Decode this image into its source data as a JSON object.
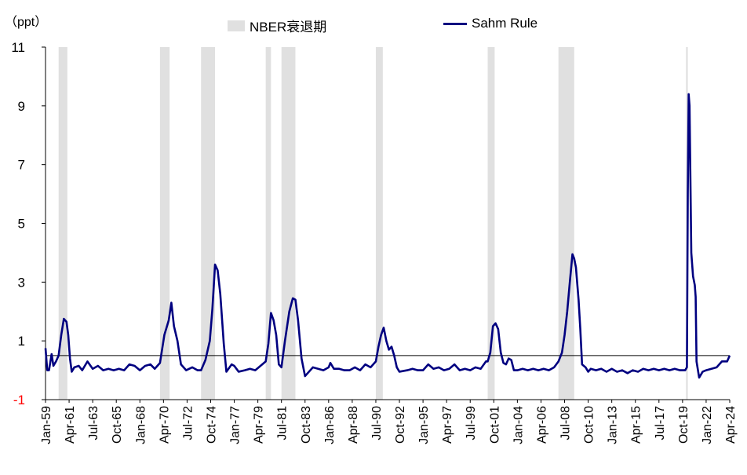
{
  "chart_data": {
    "type": "line",
    "unit_label": "（ppt）",
    "x_start": "Jan-59",
    "x_end": "Apr-24",
    "ylim": [
      -1,
      11
    ],
    "y_ticks": [
      -1,
      1,
      3,
      5,
      7,
      9,
      11
    ],
    "x_tick_labels": [
      "Jan-59",
      "Apr-61",
      "Jul-63",
      "Oct-65",
      "Jan-68",
      "Apr-70",
      "Jul-72",
      "Oct-74",
      "Jan-77",
      "Apr-79",
      "Jul-81",
      "Oct-83",
      "Jan-86",
      "Apr-88",
      "Jul-90",
      "Oct-92",
      "Jan-95",
      "Apr-97",
      "Jul-99",
      "Oct-01",
      "Jan-04",
      "Apr-06",
      "Jul-08",
      "Oct-10",
      "Jan-13",
      "Apr-15",
      "Jul-17",
      "Oct-19",
      "Jan-22",
      "Apr-24"
    ],
    "reference_line": 0.5,
    "recession_label": "NBER衰退期",
    "recession_periods": [
      [
        "Apr-60",
        "Feb-61"
      ],
      [
        "Dec-69",
        "Nov-70"
      ],
      [
        "Nov-73",
        "Mar-75"
      ],
      [
        "Jan-80",
        "Jul-80"
      ],
      [
        "Jul-81",
        "Nov-82"
      ],
      [
        "Jul-90",
        "Mar-91"
      ],
      [
        "Mar-01",
        "Nov-01"
      ],
      [
        "Dec-07",
        "Jun-09"
      ],
      [
        "Feb-20",
        "Apr-20"
      ]
    ],
    "series": [
      {
        "name": "Sahm Rule",
        "color": "#000080",
        "points": [
          [
            "Jan-59",
            0.75
          ],
          [
            "Mar-59",
            0.0
          ],
          [
            "May-59",
            0.0
          ],
          [
            "Aug-59",
            0.55
          ],
          [
            "Oct-59",
            0.15
          ],
          [
            "Jan-60",
            0.3
          ],
          [
            "Apr-60",
            0.5
          ],
          [
            "Jul-60",
            1.2
          ],
          [
            "Oct-60",
            1.75
          ],
          [
            "Jan-61",
            1.65
          ],
          [
            "Mar-61",
            1.2
          ],
          [
            "May-61",
            0.4
          ],
          [
            "Jul-61",
            -0.05
          ],
          [
            "Oct-61",
            0.1
          ],
          [
            "Mar-62",
            0.15
          ],
          [
            "Jul-62",
            0.0
          ],
          [
            "Jan-63",
            0.3
          ],
          [
            "Jul-63",
            0.05
          ],
          [
            "Jan-64",
            0.15
          ],
          [
            "Jul-64",
            0.0
          ],
          [
            "Jan-65",
            0.05
          ],
          [
            "Jul-65",
            0.0
          ],
          [
            "Jan-66",
            0.05
          ],
          [
            "Jul-66",
            0.0
          ],
          [
            "Jan-67",
            0.2
          ],
          [
            "Jul-67",
            0.15
          ],
          [
            "Jan-68",
            0.0
          ],
          [
            "Jul-68",
            0.15
          ],
          [
            "Jan-69",
            0.2
          ],
          [
            "Jun-69",
            0.05
          ],
          [
            "Dec-69",
            0.25
          ],
          [
            "May-70",
            1.2
          ],
          [
            "Oct-70",
            1.7
          ],
          [
            "Jan-71",
            2.3
          ],
          [
            "Apr-71",
            1.5
          ],
          [
            "Aug-71",
            1.0
          ],
          [
            "Dec-71",
            0.2
          ],
          [
            "Jun-72",
            0.0
          ],
          [
            "Jan-73",
            0.1
          ],
          [
            "Jul-73",
            0.0
          ],
          [
            "Nov-73",
            0.0
          ],
          [
            "Apr-74",
            0.35
          ],
          [
            "Sep-74",
            1.0
          ],
          [
            "Dec-74",
            2.1
          ],
          [
            "Mar-75",
            3.6
          ],
          [
            "Jun-75",
            3.4
          ],
          [
            "Sep-75",
            2.6
          ],
          [
            "Jan-76",
            0.9
          ],
          [
            "Apr-76",
            -0.05
          ],
          [
            "Oct-76",
            0.2
          ],
          [
            "Jan-77",
            0.15
          ],
          [
            "Jun-77",
            -0.05
          ],
          [
            "Jan-78",
            0.0
          ],
          [
            "Jul-78",
            0.05
          ],
          [
            "Jan-79",
            0.0
          ],
          [
            "Jul-79",
            0.15
          ],
          [
            "Jan-80",
            0.3
          ],
          [
            "Apr-80",
            0.9
          ],
          [
            "Jul-80",
            1.95
          ],
          [
            "Oct-80",
            1.7
          ],
          [
            "Jan-81",
            1.2
          ],
          [
            "Apr-81",
            0.2
          ],
          [
            "Jul-81",
            0.1
          ],
          [
            "Nov-81",
            1.0
          ],
          [
            "Apr-82",
            2.0
          ],
          [
            "Aug-82",
            2.45
          ],
          [
            "Nov-82",
            2.4
          ],
          [
            "Feb-83",
            1.7
          ],
          [
            "Jun-83",
            0.4
          ],
          [
            "Oct-83",
            -0.2
          ],
          [
            "Jan-84",
            -0.1
          ],
          [
            "Jul-84",
            0.1
          ],
          [
            "Jan-85",
            0.05
          ],
          [
            "Jul-85",
            0.0
          ],
          [
            "Jan-86",
            0.1
          ],
          [
            "Mar-86",
            0.25
          ],
          [
            "Jul-86",
            0.05
          ],
          [
            "Jan-87",
            0.05
          ],
          [
            "Jul-87",
            0.0
          ],
          [
            "Jan-88",
            0.0
          ],
          [
            "Jul-88",
            0.1
          ],
          [
            "Jan-89",
            0.0
          ],
          [
            "Jul-89",
            0.2
          ],
          [
            "Jan-90",
            0.1
          ],
          [
            "Jul-90",
            0.3
          ],
          [
            "Oct-90",
            0.8
          ],
          [
            "Jan-91",
            1.2
          ],
          [
            "Apr-91",
            1.45
          ],
          [
            "Jul-91",
            1.0
          ],
          [
            "Oct-91",
            0.7
          ],
          [
            "Jan-92",
            0.8
          ],
          [
            "Apr-92",
            0.5
          ],
          [
            "Jul-92",
            0.1
          ],
          [
            "Oct-92",
            -0.05
          ],
          [
            "Jul-93",
            0.0
          ],
          [
            "Jan-94",
            0.05
          ],
          [
            "Jul-94",
            0.0
          ],
          [
            "Jan-95",
            0.0
          ],
          [
            "Jul-95",
            0.2
          ],
          [
            "Jan-96",
            0.05
          ],
          [
            "Jul-96",
            0.1
          ],
          [
            "Jan-97",
            0.0
          ],
          [
            "Jul-97",
            0.05
          ],
          [
            "Jan-98",
            0.2
          ],
          [
            "Jul-98",
            0.0
          ],
          [
            "Jan-99",
            0.05
          ],
          [
            "Jul-99",
            0.0
          ],
          [
            "Jan-00",
            0.1
          ],
          [
            "Jul-00",
            0.05
          ],
          [
            "Jan-01",
            0.3
          ],
          [
            "Mar-01",
            0.3
          ],
          [
            "Jun-01",
            0.6
          ],
          [
            "Sep-01",
            1.5
          ],
          [
            "Dec-01",
            1.6
          ],
          [
            "Mar-02",
            1.4
          ],
          [
            "Jun-02",
            0.6
          ],
          [
            "Sep-02",
            0.25
          ],
          [
            "Dec-02",
            0.2
          ],
          [
            "Mar-03",
            0.4
          ],
          [
            "Jun-03",
            0.35
          ],
          [
            "Sep-03",
            0.0
          ],
          [
            "Jan-04",
            0.0
          ],
          [
            "Jul-04",
            0.05
          ],
          [
            "Jan-05",
            0.0
          ],
          [
            "Jul-05",
            0.05
          ],
          [
            "Jan-06",
            0.0
          ],
          [
            "Jul-06",
            0.05
          ],
          [
            "Jan-07",
            0.0
          ],
          [
            "Jul-07",
            0.1
          ],
          [
            "Dec-07",
            0.3
          ],
          [
            "Apr-08",
            0.6
          ],
          [
            "Jul-08",
            1.2
          ],
          [
            "Oct-08",
            2.0
          ],
          [
            "Jan-09",
            3.0
          ],
          [
            "Apr-09",
            3.95
          ],
          [
            "Jun-09",
            3.8
          ],
          [
            "Aug-09",
            3.5
          ],
          [
            "Nov-09",
            2.4
          ],
          [
            "Jan-10",
            1.4
          ],
          [
            "Mar-10",
            0.2
          ],
          [
            "Jul-10",
            0.1
          ],
          [
            "Oct-10",
            -0.05
          ],
          [
            "Jan-11",
            0.05
          ],
          [
            "Jul-11",
            0.0
          ],
          [
            "Jan-12",
            0.05
          ],
          [
            "Jul-12",
            -0.05
          ],
          [
            "Jan-13",
            0.05
          ],
          [
            "Jul-13",
            -0.05
          ],
          [
            "Jan-14",
            0.0
          ],
          [
            "Jul-14",
            -0.1
          ],
          [
            "Jan-15",
            0.0
          ],
          [
            "Jul-15",
            -0.05
          ],
          [
            "Jan-16",
            0.05
          ],
          [
            "Jul-16",
            0.0
          ],
          [
            "Jan-17",
            0.05
          ],
          [
            "Jul-17",
            0.0
          ],
          [
            "Jan-18",
            0.05
          ],
          [
            "Jul-18",
            0.0
          ],
          [
            "Jan-19",
            0.05
          ],
          [
            "Jul-19",
            0.0
          ],
          [
            "Jan-20",
            0.0
          ],
          [
            "Mar-20",
            0.1
          ],
          [
            "Apr-20",
            6.0
          ],
          [
            "May-20",
            9.4
          ],
          [
            "Jun-20",
            9.0
          ],
          [
            "Jul-20",
            6.5
          ],
          [
            "Aug-20",
            4.0
          ],
          [
            "Oct-20",
            3.2
          ],
          [
            "Dec-20",
            2.9
          ],
          [
            "Jan-21",
            2.5
          ],
          [
            "Feb-21",
            0.3
          ],
          [
            "May-21",
            -0.25
          ],
          [
            "Sep-21",
            -0.05
          ],
          [
            "Jan-22",
            0.0
          ],
          [
            "Jul-22",
            0.05
          ],
          [
            "Jan-23",
            0.1
          ],
          [
            "Jul-23",
            0.3
          ],
          [
            "Jan-24",
            0.3
          ],
          [
            "Apr-24",
            0.5
          ]
        ]
      }
    ]
  }
}
